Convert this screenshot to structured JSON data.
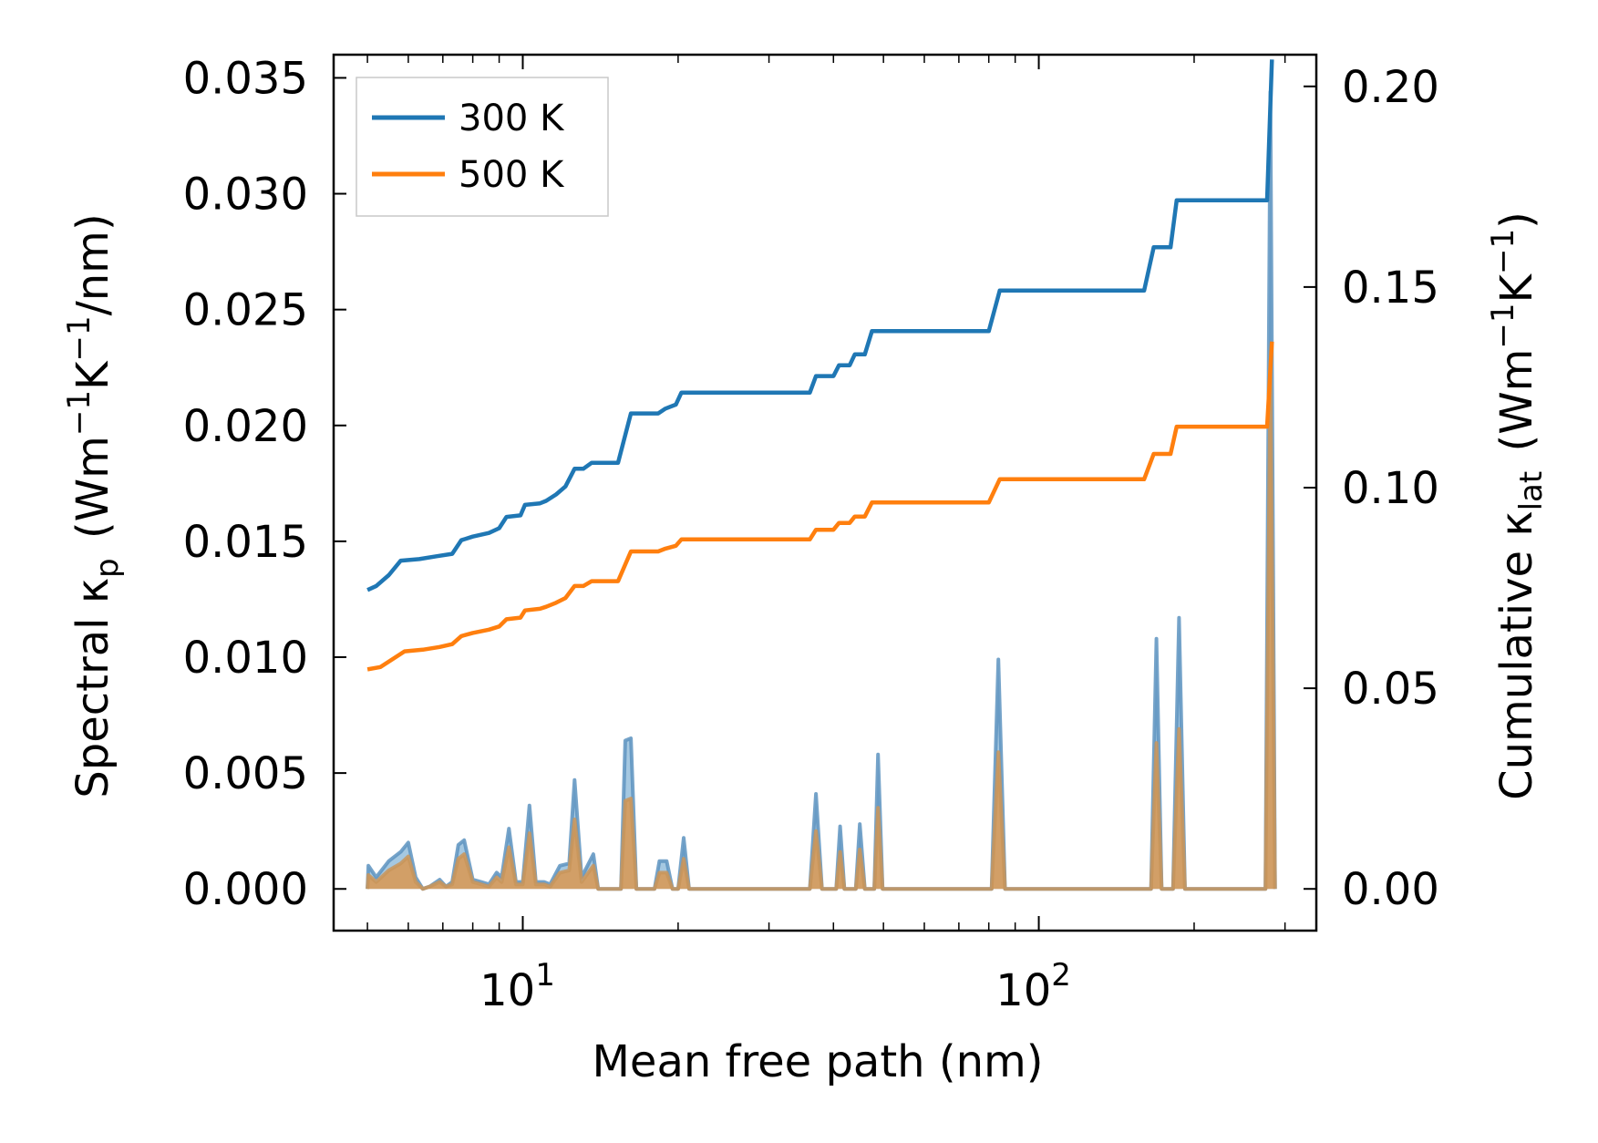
{
  "chart_data": {
    "type": "line",
    "title": "",
    "xlabel": "Mean free path (nm)",
    "ylabel_left": {
      "main": "Spectral κ",
      "sub": "p",
      "units": "(Wm",
      "sup1": "−1",
      "k": "K",
      "sup2": "−1",
      "tail": "/nm)"
    },
    "ylabel_right": {
      "main": "Cumulative κ",
      "sub": "lat",
      "units": "(Wm",
      "sup1": "−1",
      "k": "K",
      "sup2": "−1",
      "tail": ")"
    },
    "xscale": "log",
    "xlim": [
      4.3,
      345
    ],
    "ylim_left": [
      -0.0018,
      0.036
    ],
    "ylim_right": [
      -0.0104,
      0.2079
    ],
    "xticks": [
      {
        "value": 10,
        "base": "10",
        "exp": "1"
      },
      {
        "value": 100,
        "base": "10",
        "exp": "2"
      }
    ],
    "yticks_left": [
      "0.000",
      "0.005",
      "0.010",
      "0.015",
      "0.020",
      "0.025",
      "0.030",
      "0.035"
    ],
    "yticks_right": [
      "0.00",
      "0.05",
      "0.10",
      "0.15",
      "0.20"
    ],
    "legend": {
      "position": "top-left",
      "entries": [
        "300 K",
        "500 K"
      ]
    },
    "colors": {
      "300K": "#1f77b4",
      "500K": "#ff7f0e",
      "spectral_300K": "#5b9bc9",
      "spectral_500K": "#e2923d"
    },
    "cumulative": {
      "300K": [
        [
          5.0,
          0.0745
        ],
        [
          5.2,
          0.0755
        ],
        [
          5.5,
          0.0782
        ],
        [
          5.8,
          0.0818
        ],
        [
          6.3,
          0.0822
        ],
        [
          6.8,
          0.0829
        ],
        [
          7.3,
          0.0835
        ],
        [
          7.6,
          0.0869
        ],
        [
          8.0,
          0.0878
        ],
        [
          8.6,
          0.0887
        ],
        [
          9.0,
          0.0899
        ],
        [
          9.3,
          0.0927
        ],
        [
          9.9,
          0.0931
        ],
        [
          10.1,
          0.0957
        ],
        [
          10.8,
          0.0961
        ],
        [
          11.1,
          0.0967
        ],
        [
          11.6,
          0.0983
        ],
        [
          12.1,
          0.1003
        ],
        [
          12.6,
          0.1047
        ],
        [
          13.1,
          0.1047
        ],
        [
          13.6,
          0.1062
        ],
        [
          15.3,
          0.1062
        ],
        [
          16.2,
          0.1185
        ],
        [
          18.3,
          0.1185
        ],
        [
          18.9,
          0.1197
        ],
        [
          19.8,
          0.1207
        ],
        [
          20.3,
          0.1237
        ],
        [
          36.0,
          0.1237
        ],
        [
          37.0,
          0.1278
        ],
        [
          40.0,
          0.1278
        ],
        [
          41.0,
          0.1305
        ],
        [
          43.0,
          0.1305
        ],
        [
          44.0,
          0.1332
        ],
        [
          46.0,
          0.1332
        ],
        [
          47.5,
          0.139
        ],
        [
          80.0,
          0.139
        ],
        [
          84.0,
          0.1491
        ],
        [
          160.0,
          0.1491
        ],
        [
          167.0,
          0.1599
        ],
        [
          180.0,
          0.1599
        ],
        [
          185.0,
          0.1716
        ],
        [
          277.0,
          0.1716
        ],
        [
          283.0,
          0.2067
        ]
      ],
      "500K": [
        [
          5.0,
          0.0547
        ],
        [
          5.3,
          0.0553
        ],
        [
          5.6,
          0.0573
        ],
        [
          5.9,
          0.0592
        ],
        [
          6.4,
          0.0596
        ],
        [
          6.9,
          0.0603
        ],
        [
          7.3,
          0.061
        ],
        [
          7.6,
          0.063
        ],
        [
          8.0,
          0.0638
        ],
        [
          8.6,
          0.0646
        ],
        [
          9.0,
          0.0654
        ],
        [
          9.3,
          0.0672
        ],
        [
          9.9,
          0.0676
        ],
        [
          10.1,
          0.0694
        ],
        [
          10.8,
          0.0698
        ],
        [
          11.1,
          0.0703
        ],
        [
          11.6,
          0.0713
        ],
        [
          12.1,
          0.0725
        ],
        [
          12.6,
          0.0755
        ],
        [
          13.1,
          0.0755
        ],
        [
          13.6,
          0.0767
        ],
        [
          15.3,
          0.0767
        ],
        [
          16.2,
          0.0841
        ],
        [
          18.3,
          0.0841
        ],
        [
          18.9,
          0.0848
        ],
        [
          19.8,
          0.0855
        ],
        [
          20.3,
          0.0871
        ],
        [
          36.0,
          0.0871
        ],
        [
          37.0,
          0.0895
        ],
        [
          40.0,
          0.0895
        ],
        [
          41.0,
          0.0912
        ],
        [
          43.0,
          0.0912
        ],
        [
          44.0,
          0.0928
        ],
        [
          46.0,
          0.0928
        ],
        [
          47.5,
          0.0963
        ],
        [
          80.0,
          0.0963
        ],
        [
          84.0,
          0.1021
        ],
        [
          160.0,
          0.1021
        ],
        [
          167.0,
          0.1084
        ],
        [
          180.0,
          0.1084
        ],
        [
          185.0,
          0.1152
        ],
        [
          277.0,
          0.1152
        ],
        [
          283.0,
          0.1364
        ]
      ]
    },
    "spectral": {
      "300K": [
        [
          5.0,
          0.0
        ],
        [
          5.02,
          0.001
        ],
        [
          5.2,
          0.0005
        ],
        [
          5.5,
          0.0012
        ],
        [
          5.8,
          0.0016
        ],
        [
          6.0,
          0.002
        ],
        [
          6.2,
          0.0005
        ],
        [
          6.4,
          0.0
        ],
        [
          6.6,
          0.0001
        ],
        [
          6.9,
          0.0004
        ],
        [
          7.1,
          0.0001
        ],
        [
          7.3,
          0.0003
        ],
        [
          7.5,
          0.0019
        ],
        [
          7.7,
          0.0021
        ],
        [
          8.0,
          0.0004
        ],
        [
          8.3,
          0.0003
        ],
        [
          8.6,
          0.0002
        ],
        [
          8.9,
          0.0007
        ],
        [
          9.1,
          0.0005
        ],
        [
          9.4,
          0.0026
        ],
        [
          9.7,
          0.0003
        ],
        [
          10.0,
          0.0003
        ],
        [
          10.3,
          0.0036
        ],
        [
          10.6,
          0.0003
        ],
        [
          11.0,
          0.0003
        ],
        [
          11.3,
          0.0002
        ],
        [
          11.8,
          0.001
        ],
        [
          12.3,
          0.0011
        ],
        [
          12.6,
          0.0047
        ],
        [
          13.0,
          0.0005
        ],
        [
          13.7,
          0.0015
        ],
        [
          14.0,
          0.0
        ],
        [
          15.5,
          0.0
        ],
        [
          15.8,
          0.0064
        ],
        [
          16.2,
          0.0065
        ],
        [
          16.6,
          0.0
        ],
        [
          18.0,
          0.0
        ],
        [
          18.4,
          0.0012
        ],
        [
          19.0,
          0.0012
        ],
        [
          19.5,
          0.0
        ],
        [
          20.0,
          0.0
        ],
        [
          20.5,
          0.0022
        ],
        [
          21.0,
          0.0
        ],
        [
          36.0,
          0.0
        ],
        [
          37.0,
          0.0041
        ],
        [
          38.0,
          0.0
        ],
        [
          40.5,
          0.0
        ],
        [
          41.2,
          0.0027
        ],
        [
          42.0,
          0.0
        ],
        [
          44.2,
          0.0
        ],
        [
          45.0,
          0.0028
        ],
        [
          46.0,
          0.0
        ],
        [
          48.0,
          0.0
        ],
        [
          48.8,
          0.0058
        ],
        [
          49.8,
          0.0
        ],
        [
          81.0,
          0.0
        ],
        [
          83.5,
          0.0099
        ],
        [
          86.0,
          0.0
        ],
        [
          165.0,
          0.0
        ],
        [
          169.0,
          0.0108
        ],
        [
          173.0,
          0.0
        ],
        [
          182.0,
          0.0
        ],
        [
          187.0,
          0.0117
        ],
        [
          192.0,
          0.0
        ],
        [
          275.0,
          0.0
        ],
        [
          281.0,
          0.0344
        ],
        [
          287.0,
          0.0
        ]
      ],
      "500K": [
        [
          5.0,
          0.0
        ],
        [
          5.02,
          0.0006
        ],
        [
          5.2,
          0.0003
        ],
        [
          5.5,
          0.0008
        ],
        [
          5.8,
          0.0011
        ],
        [
          6.0,
          0.0014
        ],
        [
          6.2,
          0.0003
        ],
        [
          6.4,
          0.0
        ],
        [
          6.6,
          0.0001
        ],
        [
          6.9,
          0.0003
        ],
        [
          7.1,
          0.0001
        ],
        [
          7.3,
          0.0002
        ],
        [
          7.5,
          0.0013
        ],
        [
          7.7,
          0.0015
        ],
        [
          8.0,
          0.0003
        ],
        [
          8.3,
          0.0002
        ],
        [
          8.6,
          0.0001
        ],
        [
          8.9,
          0.0005
        ],
        [
          9.1,
          0.0003
        ],
        [
          9.4,
          0.0018
        ],
        [
          9.7,
          0.0002
        ],
        [
          10.0,
          0.0002
        ],
        [
          10.3,
          0.0024
        ],
        [
          10.6,
          0.0002
        ],
        [
          11.0,
          0.0002
        ],
        [
          11.3,
          0.0001
        ],
        [
          11.8,
          0.0007
        ],
        [
          12.3,
          0.0008
        ],
        [
          12.6,
          0.003
        ],
        [
          13.0,
          0.0003
        ],
        [
          13.7,
          0.001
        ],
        [
          14.0,
          0.0
        ],
        [
          15.5,
          0.0
        ],
        [
          15.8,
          0.0038
        ],
        [
          16.2,
          0.0039
        ],
        [
          16.6,
          0.0
        ],
        [
          18.0,
          0.0
        ],
        [
          18.4,
          0.0007
        ],
        [
          19.0,
          0.0007
        ],
        [
          19.5,
          0.0
        ],
        [
          20.0,
          0.0
        ],
        [
          20.5,
          0.0013
        ],
        [
          21.0,
          0.0
        ],
        [
          36.0,
          0.0
        ],
        [
          37.0,
          0.0025
        ],
        [
          38.0,
          0.0
        ],
        [
          40.5,
          0.0
        ],
        [
          41.2,
          0.0016
        ],
        [
          42.0,
          0.0
        ],
        [
          44.2,
          0.0
        ],
        [
          45.0,
          0.0017
        ],
        [
          46.0,
          0.0
        ],
        [
          48.0,
          0.0
        ],
        [
          48.8,
          0.0035
        ],
        [
          49.8,
          0.0
        ],
        [
          81.0,
          0.0
        ],
        [
          83.5,
          0.0059
        ],
        [
          86.0,
          0.0
        ],
        [
          165.0,
          0.0
        ],
        [
          169.0,
          0.0063
        ],
        [
          173.0,
          0.0
        ],
        [
          182.0,
          0.0
        ],
        [
          187.0,
          0.0069
        ],
        [
          192.0,
          0.0
        ],
        [
          275.0,
          0.0
        ],
        [
          281.0,
          0.0225
        ],
        [
          287.0,
          0.0
        ]
      ]
    }
  }
}
